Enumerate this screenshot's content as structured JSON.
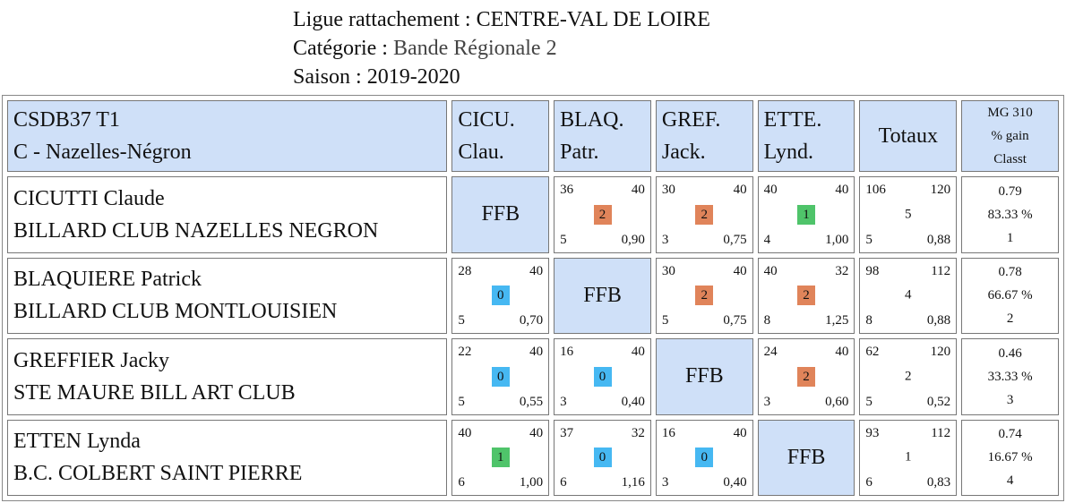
{
  "header": {
    "ligue_label": "Ligue rattachement :",
    "ligue_value": "CENTRE-VAL DE LOIRE",
    "categorie_label": "Catégorie :",
    "categorie_value": "Bande Régionale 2",
    "saison_label": "Saison :",
    "saison_value": "2019-2020"
  },
  "colors": {
    "header_bg": "#cfe0f8",
    "win": "#e0845a",
    "draw": "#4fc46a",
    "loss": "#46b8f2"
  },
  "table": {
    "team_line1": "CSDB37 T1",
    "team_line2": "C - Nazelles-Négron",
    "columns": [
      {
        "line1": "CICU.",
        "line2": "Clau."
      },
      {
        "line1": "BLAQ.",
        "line2": "Patr."
      },
      {
        "line1": "GREF.",
        "line2": "Jack."
      },
      {
        "line1": "ETTE.",
        "line2": "Lynd."
      }
    ],
    "totals_label": "Totaux",
    "mg_header": {
      "line1": "MG 310",
      "line2": "% gain",
      "line3": "Classt"
    },
    "ffb_label": "FFB",
    "rows": [
      {
        "name": "CICUTTI Claude",
        "club": "BILLARD CLUB NAZELLES NEGRON",
        "cells": [
          null,
          {
            "tl": "36",
            "tr": "40",
            "pts": "2",
            "result": "win",
            "bl": "5",
            "br": "0,90"
          },
          {
            "tl": "30",
            "tr": "40",
            "pts": "2",
            "result": "win",
            "bl": "3",
            "br": "0,75"
          },
          {
            "tl": "40",
            "tr": "40",
            "pts": "1",
            "result": "draw",
            "bl": "4",
            "br": "1,00"
          }
        ],
        "totals": {
          "tl": "106",
          "tr": "120",
          "mid": "5",
          "bl": "5",
          "br": "0,88"
        },
        "mg": {
          "avg": "0.79",
          "pct": "83.33 %",
          "rank": "1"
        }
      },
      {
        "name": "BLAQUIERE Patrick",
        "club": "BILLARD CLUB MONTLOUISIEN",
        "cells": [
          {
            "tl": "28",
            "tr": "40",
            "pts": "0",
            "result": "loss",
            "bl": "5",
            "br": "0,70"
          },
          null,
          {
            "tl": "30",
            "tr": "40",
            "pts": "2",
            "result": "win",
            "bl": "5",
            "br": "0,75"
          },
          {
            "tl": "40",
            "tr": "32",
            "pts": "2",
            "result": "win",
            "bl": "8",
            "br": "1,25"
          }
        ],
        "totals": {
          "tl": "98",
          "tr": "112",
          "mid": "4",
          "bl": "8",
          "br": "0,88"
        },
        "mg": {
          "avg": "0.78",
          "pct": "66.67 %",
          "rank": "2"
        }
      },
      {
        "name": "GREFFIER Jacky",
        "club": "STE MAURE BILL ART CLUB",
        "cells": [
          {
            "tl": "22",
            "tr": "40",
            "pts": "0",
            "result": "loss",
            "bl": "5",
            "br": "0,55"
          },
          {
            "tl": "16",
            "tr": "40",
            "pts": "0",
            "result": "loss",
            "bl": "3",
            "br": "0,40"
          },
          null,
          {
            "tl": "24",
            "tr": "40",
            "pts": "2",
            "result": "win",
            "bl": "3",
            "br": "0,60"
          }
        ],
        "totals": {
          "tl": "62",
          "tr": "120",
          "mid": "2",
          "bl": "5",
          "br": "0,52"
        },
        "mg": {
          "avg": "0.46",
          "pct": "33.33 %",
          "rank": "3"
        }
      },
      {
        "name": "ETTEN Lynda",
        "club": "B.C. COLBERT SAINT PIERRE",
        "cells": [
          {
            "tl": "40",
            "tr": "40",
            "pts": "1",
            "result": "draw",
            "bl": "6",
            "br": "1,00"
          },
          {
            "tl": "37",
            "tr": "32",
            "pts": "0",
            "result": "loss",
            "bl": "6",
            "br": "1,16"
          },
          {
            "tl": "16",
            "tr": "40",
            "pts": "0",
            "result": "loss",
            "bl": "3",
            "br": "0,40"
          },
          null
        ],
        "totals": {
          "tl": "93",
          "tr": "112",
          "mid": "1",
          "bl": "6",
          "br": "0,83"
        },
        "mg": {
          "avg": "0.74",
          "pct": "16.67 %",
          "rank": "4"
        }
      }
    ]
  }
}
